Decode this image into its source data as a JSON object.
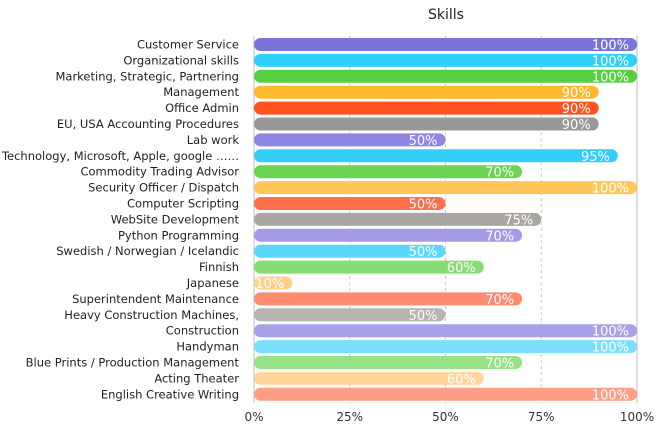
{
  "chart_data": {
    "type": "bar",
    "orientation": "horizontal",
    "title": "Skills",
    "xlabel": "",
    "ylabel": "",
    "xlim": [
      0,
      100
    ],
    "x_ticks": [
      0,
      25,
      50,
      75,
      100
    ],
    "x_tick_labels": [
      "0%",
      "25%",
      "50%",
      "75%",
      "100%"
    ],
    "grid": "vertical dashed",
    "legend": "none",
    "categories": [
      "Customer Service",
      "Organizational skills",
      "Marketing, Strategic, Partnering",
      "Management",
      "Office Admin",
      "EU, USA Accounting Procedures",
      "Lab work",
      "Technology, Microsoft, Apple, google ……",
      "Commodity Trading Advisor",
      "Security Officer / Dispatch",
      "Computer Scripting",
      "WebSite Development",
      "Python Programming",
      "Swedish / Norwegian / Icelandic",
      "Finnish",
      "Japanese",
      "Superintendent Maintenance",
      "Heavy Construction Machines,",
      "Construction",
      "Handyman",
      "Blue Prints / Production Management",
      "Acting Theater",
      "English Creative Writing"
    ],
    "values": [
      100,
      100,
      100,
      90,
      90,
      90,
      50,
      95,
      70,
      100,
      50,
      75,
      70,
      50,
      60,
      10,
      70,
      50,
      100,
      100,
      70,
      60,
      100
    ],
    "value_labels": [
      "100%",
      "100%",
      "100%",
      "90%",
      "90%",
      "90%",
      "50%",
      "95%",
      "70%",
      "100%",
      "50%",
      "75%",
      "70%",
      "50%",
      "60%",
      "10%",
      "70%",
      "50%",
      "100%",
      "100%",
      "70%",
      "60%",
      "100%"
    ],
    "colors": [
      "#7b74d8",
      "#2fd0fb",
      "#58cf43",
      "#fdb92d",
      "#fe5321",
      "#9a9896",
      "#8f86e3",
      "#33cffb",
      "#6bd452",
      "#ffc75a",
      "#fe6f4d",
      "#aaa7a3",
      "#a39be6",
      "#5ad8fc",
      "#88dc74",
      "#ffd089",
      "#fe8b6f",
      "#b8b5b1",
      "#a8a1ea",
      "#7cdffd",
      "#97e186",
      "#ffd59a",
      "#ff9e85"
    ]
  }
}
